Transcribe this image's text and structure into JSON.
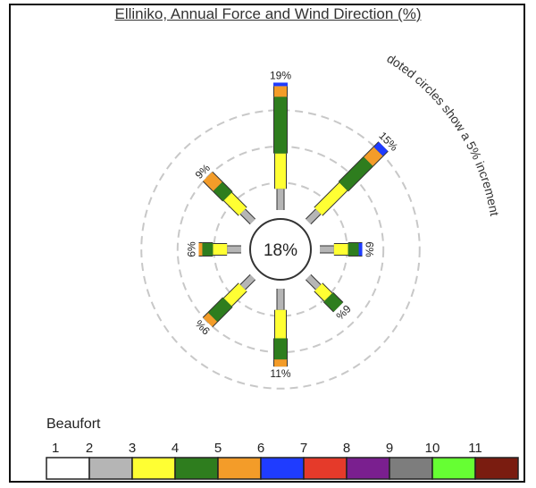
{
  "chart_data": {
    "type": "wind-rose",
    "title": "Elliniko, Annual Force and Wind Direction (%)",
    "calm_label": "18%",
    "annotation": "doted circles show a 5% increment",
    "ring_step_percent": 5,
    "directions": [
      {
        "direction": "N",
        "total_label": "19%",
        "total": 19,
        "beaufort_share": [
          0,
          3,
          5,
          8,
          1.5,
          0,
          0,
          0,
          0,
          0,
          0
        ],
        "extra": {
          "6": 0.5
        }
      },
      {
        "direction": "NE",
        "total_label": "15%",
        "total": 15,
        "beaufort_share": [
          0,
          2,
          5,
          5,
          2,
          1,
          0,
          0,
          0,
          0,
          0
        ]
      },
      {
        "direction": "E",
        "total_label": "6%",
        "total": 6,
        "beaufort_share": [
          0,
          2,
          2,
          1.5,
          0,
          0.5,
          0,
          0,
          0,
          0,
          0
        ]
      },
      {
        "direction": "SE",
        "total_label": "6%",
        "total": 6,
        "beaufort_share": [
          0,
          2,
          2,
          2,
          0,
          0,
          0,
          0,
          0,
          0,
          0
        ]
      },
      {
        "direction": "S",
        "total_label": "11%",
        "total": 11,
        "beaufort_share": [
          0,
          3,
          4,
          3,
          1,
          0,
          0,
          0,
          0,
          0,
          0
        ]
      },
      {
        "direction": "SW",
        "total_label": "9%",
        "total": 9,
        "beaufort_share": [
          0,
          2,
          3,
          3,
          1,
          0,
          0,
          0,
          0,
          0,
          0
        ]
      },
      {
        "direction": "W",
        "total_label": "6%",
        "total": 6,
        "beaufort_share": [
          0,
          2,
          2,
          1.5,
          0.5,
          0,
          0,
          0,
          0,
          0,
          0
        ]
      },
      {
        "direction": "NW",
        "total_label": "9%",
        "total": 9,
        "beaufort_share": [
          0,
          2,
          3,
          2,
          2,
          0,
          0,
          0,
          0,
          0,
          0
        ]
      }
    ],
    "legend": {
      "title": "Beaufort",
      "items": [
        {
          "label": "1",
          "color": "#ffffff"
        },
        {
          "label": "2",
          "color": "#b5b5b5"
        },
        {
          "label": "3",
          "color": "#ffff33"
        },
        {
          "label": "4",
          "color": "#2e7d1e"
        },
        {
          "label": "5",
          "color": "#f39c29"
        },
        {
          "label": "6",
          "color": "#1f3cff"
        },
        {
          "label": "7",
          "color": "#e53a2a"
        },
        {
          "label": "8",
          "color": "#7a1f8f"
        },
        {
          "label": "9",
          "color": "#7d7d7d"
        },
        {
          "label": "10",
          "color": "#66ff33"
        },
        {
          "label": "11",
          "color": "#7a1c10"
        }
      ]
    }
  }
}
